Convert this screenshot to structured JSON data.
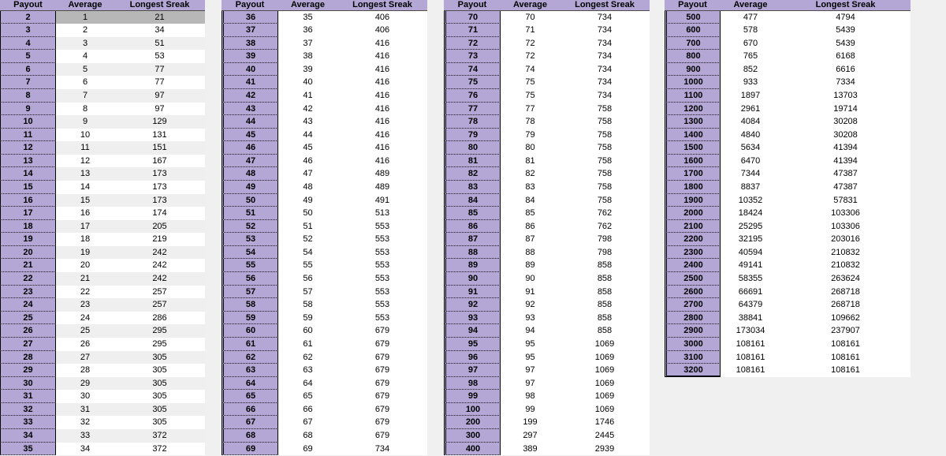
{
  "colors": {
    "page_background": "#f0f0f0",
    "header_purple": "#b4a7d6",
    "payout_cell_purple": "#b4a7d6",
    "selected_row_gray": "#b7b7b7",
    "alt_row_gray": "#efefef",
    "header_underline": "#4d4d4d",
    "cell_border_black": "#000000"
  },
  "headers": {
    "payout": "Payout",
    "average": "Average",
    "longest_streak": "Longest Sreak"
  },
  "tables": [
    {
      "name": "payout-table-2-35",
      "zebra": true,
      "selected_row_index": 0,
      "rows": [
        [
          2,
          1,
          21
        ],
        [
          3,
          2,
          34
        ],
        [
          4,
          3,
          51
        ],
        [
          5,
          4,
          53
        ],
        [
          6,
          5,
          77
        ],
        [
          7,
          6,
          77
        ],
        [
          8,
          7,
          97
        ],
        [
          9,
          8,
          97
        ],
        [
          10,
          9,
          129
        ],
        [
          11,
          10,
          131
        ],
        [
          12,
          11,
          151
        ],
        [
          13,
          12,
          167
        ],
        [
          14,
          13,
          173
        ],
        [
          15,
          14,
          173
        ],
        [
          16,
          15,
          173
        ],
        [
          17,
          16,
          174
        ],
        [
          18,
          17,
          205
        ],
        [
          19,
          18,
          219
        ],
        [
          20,
          19,
          242
        ],
        [
          21,
          20,
          242
        ],
        [
          22,
          21,
          242
        ],
        [
          23,
          22,
          257
        ],
        [
          24,
          23,
          257
        ],
        [
          25,
          24,
          286
        ],
        [
          26,
          25,
          295
        ],
        [
          27,
          26,
          295
        ],
        [
          28,
          27,
          305
        ],
        [
          29,
          28,
          305
        ],
        [
          30,
          29,
          305
        ],
        [
          31,
          30,
          305
        ],
        [
          32,
          31,
          305
        ],
        [
          33,
          32,
          305
        ],
        [
          34,
          33,
          372
        ],
        [
          35,
          34,
          372
        ]
      ]
    },
    {
      "name": "payout-table-36-69",
      "zebra": false,
      "selected_row_index": -1,
      "rows": [
        [
          36,
          35,
          406
        ],
        [
          37,
          36,
          406
        ],
        [
          38,
          37,
          416
        ],
        [
          39,
          38,
          416
        ],
        [
          40,
          39,
          416
        ],
        [
          41,
          40,
          416
        ],
        [
          42,
          41,
          416
        ],
        [
          43,
          42,
          416
        ],
        [
          44,
          43,
          416
        ],
        [
          45,
          44,
          416
        ],
        [
          46,
          45,
          416
        ],
        [
          47,
          46,
          416
        ],
        [
          48,
          47,
          489
        ],
        [
          49,
          48,
          489
        ],
        [
          50,
          49,
          491
        ],
        [
          51,
          50,
          513
        ],
        [
          52,
          51,
          553
        ],
        [
          53,
          52,
          553
        ],
        [
          54,
          54,
          553
        ],
        [
          55,
          55,
          553
        ],
        [
          56,
          56,
          553
        ],
        [
          57,
          57,
          553
        ],
        [
          58,
          58,
          553
        ],
        [
          59,
          59,
          553
        ],
        [
          60,
          60,
          679
        ],
        [
          61,
          61,
          679
        ],
        [
          62,
          62,
          679
        ],
        [
          63,
          63,
          679
        ],
        [
          64,
          64,
          679
        ],
        [
          65,
          65,
          679
        ],
        [
          66,
          66,
          679
        ],
        [
          67,
          67,
          679
        ],
        [
          68,
          68,
          679
        ],
        [
          69,
          69,
          734
        ]
      ]
    },
    {
      "name": "payout-table-70-400",
      "zebra": false,
      "selected_row_index": -1,
      "rows": [
        [
          70,
          70,
          734
        ],
        [
          71,
          71,
          734
        ],
        [
          72,
          72,
          734
        ],
        [
          73,
          72,
          734
        ],
        [
          74,
          74,
          734
        ],
        [
          75,
          75,
          734
        ],
        [
          76,
          75,
          734
        ],
        [
          77,
          77,
          758
        ],
        [
          78,
          78,
          758
        ],
        [
          79,
          79,
          758
        ],
        [
          80,
          80,
          758
        ],
        [
          81,
          81,
          758
        ],
        [
          82,
          82,
          758
        ],
        [
          83,
          83,
          758
        ],
        [
          84,
          84,
          758
        ],
        [
          85,
          85,
          762
        ],
        [
          86,
          86,
          762
        ],
        [
          87,
          87,
          798
        ],
        [
          88,
          88,
          798
        ],
        [
          89,
          89,
          858
        ],
        [
          90,
          90,
          858
        ],
        [
          91,
          91,
          858
        ],
        [
          92,
          92,
          858
        ],
        [
          93,
          93,
          858
        ],
        [
          94,
          94,
          858
        ],
        [
          95,
          95,
          1069
        ],
        [
          96,
          95,
          1069
        ],
        [
          97,
          97,
          1069
        ],
        [
          98,
          97,
          1069
        ],
        [
          99,
          98,
          1069
        ],
        [
          100,
          99,
          1069
        ],
        [
          200,
          199,
          1746
        ],
        [
          300,
          297,
          2445
        ],
        [
          400,
          389,
          2939
        ]
      ]
    },
    {
      "name": "payout-table-500-3200",
      "zebra": false,
      "selected_row_index": -1,
      "rows": [
        [
          500,
          477,
          4794
        ],
        [
          600,
          578,
          5439
        ],
        [
          700,
          670,
          5439
        ],
        [
          800,
          765,
          6168
        ],
        [
          900,
          852,
          6616
        ],
        [
          1000,
          933,
          7334
        ],
        [
          1100,
          1897,
          13703
        ],
        [
          1200,
          2961,
          19714
        ],
        [
          1300,
          4084,
          30208
        ],
        [
          1400,
          4840,
          30208
        ],
        [
          1500,
          5634,
          41394
        ],
        [
          1600,
          6470,
          41394
        ],
        [
          1700,
          7344,
          47387
        ],
        [
          1800,
          8837,
          47387
        ],
        [
          1900,
          10352,
          57831
        ],
        [
          2000,
          18424,
          103306
        ],
        [
          2100,
          25295,
          103306
        ],
        [
          2200,
          32195,
          203016
        ],
        [
          2300,
          40594,
          210832
        ],
        [
          2400,
          49141,
          210832
        ],
        [
          2500,
          58355,
          263624
        ],
        [
          2600,
          66691,
          268718
        ],
        [
          2700,
          64379,
          268718
        ],
        [
          2800,
          38841,
          109662
        ],
        [
          2900,
          173034,
          237907
        ],
        [
          3000,
          108161,
          108161
        ],
        [
          3100,
          108161,
          108161
        ],
        [
          3200,
          108161,
          108161
        ]
      ]
    }
  ]
}
